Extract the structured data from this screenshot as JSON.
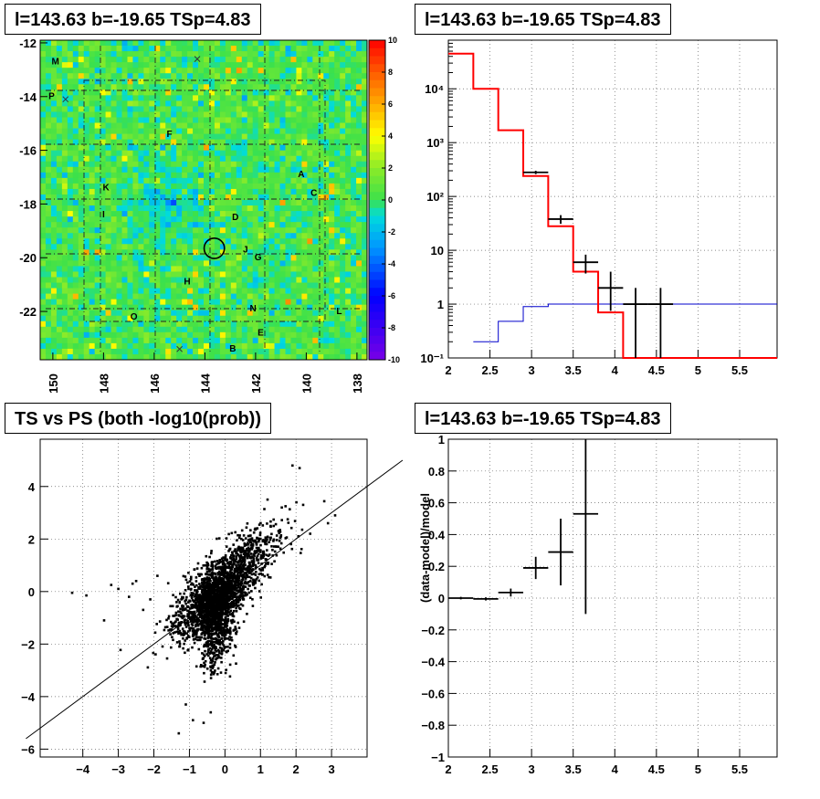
{
  "panels": {
    "map_title": "l=143.63 b=-19.65 TSp=4.83",
    "spectrum_title": "l=143.63 b=-19.65 TSp=4.83",
    "scatter_title": "TS vs PS (both -log10(prob))",
    "residual_title": "l=143.63 b=-19.65 TSp=4.83"
  },
  "colors": {
    "model": "#ff0000",
    "background": "#0000cc",
    "data": "#000000",
    "map_base": "#3fe04a"
  },
  "chart_data": [
    {
      "type": "heatmap",
      "title": "l=143.63 b=-19.65 TSp=4.83",
      "xlim": [
        150.5,
        137.6
      ],
      "ylim": [
        -23.8,
        -11.9
      ],
      "x_ticks": [
        "150",
        "148",
        "146",
        "144",
        "142",
        "140",
        "138"
      ],
      "x_tick_values": [
        150,
        148,
        146,
        144,
        142,
        140,
        138
      ],
      "y_ticks": [
        "-12",
        "-14",
        "-16",
        "-18",
        "-20",
        "-22"
      ],
      "y_tick_values": [
        -12,
        -14,
        -16,
        -18,
        -20,
        -22
      ],
      "colorbar_ticks": [
        "10",
        "8",
        "6",
        "4",
        "2",
        "0",
        "-2",
        "-4",
        "-6",
        "-8",
        "-10"
      ],
      "colorbar_values": [
        10,
        8,
        6,
        4,
        2,
        0,
        -2,
        -4,
        -6,
        -8,
        -10
      ],
      "zlim": [
        -10,
        10
      ],
      "source_circle": {
        "l": 143.63,
        "b": -19.65,
        "radius_deg": 0.4
      },
      "labels": [
        {
          "text": "M",
          "l": 149.9,
          "b": -12.8
        },
        {
          "text": "P",
          "l": 150.05,
          "b": -14.1
        },
        {
          "text": "F",
          "l": 145.4,
          "b": -15.5
        },
        {
          "text": "A",
          "l": 140.2,
          "b": -17.0
        },
        {
          "text": "K",
          "l": 147.9,
          "b": -17.5
        },
        {
          "text": "C",
          "l": 139.7,
          "b": -17.7
        },
        {
          "text": "I",
          "l": 148.0,
          "b": -18.5
        },
        {
          "text": "D",
          "l": 142.8,
          "b": -18.6
        },
        {
          "text": "J",
          "l": 142.4,
          "b": -19.8
        },
        {
          "text": "G",
          "l": 141.9,
          "b": -20.1
        },
        {
          "text": "H",
          "l": 144.7,
          "b": -21.0
        },
        {
          "text": "N",
          "l": 142.1,
          "b": -22.0
        },
        {
          "text": "O",
          "l": 146.8,
          "b": -22.3
        },
        {
          "text": "L",
          "l": 138.7,
          "b": -22.1
        },
        {
          "text": "E",
          "l": 141.8,
          "b": -22.9
        },
        {
          "text": "B",
          "l": 142.9,
          "b": -23.5
        }
      ],
      "crosses": [
        {
          "l": 149.5,
          "b": -14.1
        },
        {
          "l": 144.3,
          "b": -12.6
        },
        {
          "l": 145.0,
          "b": -23.4
        }
      ]
    },
    {
      "type": "line",
      "title": "l=143.63 b=-19.65 TSp=4.83",
      "log_y": true,
      "xlim": [
        2,
        5.95
      ],
      "ylim": [
        0.1,
        80000
      ],
      "x_ticks": [
        "2",
        "2.5",
        "3",
        "3.5",
        "4",
        "4.5",
        "5",
        "5.5"
      ],
      "x_tick_values": [
        2,
        2.5,
        3,
        3.5,
        4,
        4.5,
        5,
        5.5
      ],
      "y_ticks": [
        "10⁻¹",
        "1",
        "10",
        "10²",
        "10³",
        "10⁴"
      ],
      "y_tick_values": [
        0.1,
        1,
        10,
        100,
        1000,
        10000
      ],
      "grid": true,
      "series": [
        {
          "role": "model",
          "edges": [
            2.0,
            2.3,
            2.6,
            2.9,
            3.2,
            3.5,
            3.8,
            4.1,
            4.4,
            4.7,
            5.95
          ],
          "values": [
            45000,
            10000,
            1700,
            240,
            28,
            4,
            0.7,
            0.1,
            0.1,
            0.1
          ]
        },
        {
          "role": "background",
          "edges": [
            2.3,
            2.6,
            2.9,
            3.2,
            3.5,
            3.8,
            5.95
          ],
          "values": [
            0.2,
            0.48,
            0.9,
            1.0,
            1.0,
            1.0
          ]
        },
        {
          "role": "data",
          "points": [
            {
              "x": 3.05,
              "xerr": 0.15,
              "y": 280,
              "ylo": 260,
              "yhi": 300
            },
            {
              "x": 3.35,
              "xerr": 0.15,
              "y": 38,
              "ylo": 31,
              "yhi": 45
            },
            {
              "x": 3.65,
              "xerr": 0.15,
              "y": 6,
              "ylo": 3.7,
              "yhi": 8.3
            },
            {
              "x": 3.95,
              "xerr": 0.15,
              "y": 2,
              "ylo": 0.75,
              "yhi": 4
            },
            {
              "x": 4.25,
              "xerr": 0.15,
              "y": 1,
              "ylo": 0.1,
              "yhi": 2
            },
            {
              "x": 4.55,
              "xerr": 0.15,
              "y": 1,
              "ylo": 0.1,
              "yhi": 2
            }
          ]
        }
      ]
    },
    {
      "type": "scatter",
      "title": "TS vs PS (both -log10(prob))",
      "xlim": [
        -5.2,
        4
      ],
      "ylim": [
        -6.3,
        5.8
      ],
      "x_ticks": [
        "−4",
        "−3",
        "−2",
        "−1",
        "0",
        "1",
        "2",
        "3"
      ],
      "x_tick_values": [
        -4,
        -3,
        -2,
        -1,
        0,
        1,
        2,
        3
      ],
      "y_ticks": [
        "−6",
        "−4",
        "−2",
        "0",
        "2",
        "4"
      ],
      "y_tick_values": [
        -6,
        -4,
        -2,
        0,
        2,
        4
      ],
      "grid": true,
      "reference_line": {
        "slope": 1,
        "intercept": 0
      },
      "outliers": [
        [
          -4.3,
          -0.05
        ],
        [
          -3.9,
          -0.15
        ],
        [
          -3.2,
          0.25
        ],
        [
          -3.0,
          0.1
        ],
        [
          -2.6,
          0.3
        ],
        [
          -3.4,
          -1.1
        ],
        [
          -2.3,
          -0.7
        ],
        [
          -2.5,
          0.4
        ],
        [
          1.9,
          4.8
        ],
        [
          2.1,
          4.7
        ],
        [
          2.9,
          2.6
        ],
        [
          3.1,
          2.9
        ],
        [
          -1.3,
          -5.4
        ],
        [
          -0.9,
          -4.9
        ],
        [
          -0.6,
          -5.0
        ],
        [
          -1.1,
          -4.3
        ],
        [
          2.2,
          3.3
        ],
        [
          1.6,
          3.2
        ],
        [
          2.4,
          2.2
        ],
        [
          -2.1,
          -0.3
        ],
        [
          -1.9,
          0.6
        ],
        [
          -0.4,
          -4.6
        ],
        [
          1.2,
          3.5
        ],
        [
          -2.7,
          -0.2
        ]
      ]
    },
    {
      "type": "line",
      "title": "l=143.63 b=-19.65 TSp=4.83",
      "ylabel": "(data-model)/model",
      "xlim": [
        2,
        5.95
      ],
      "ylim": [
        -1,
        1
      ],
      "x_ticks": [
        "2",
        "2.5",
        "3",
        "3.5",
        "4",
        "4.5",
        "5",
        "5.5"
      ],
      "x_tick_values": [
        2,
        2.5,
        3,
        3.5,
        4,
        4.5,
        5,
        5.5
      ],
      "y_ticks": [
        "−1",
        "−0.8",
        "−0.6",
        "−0.4",
        "−0.2",
        "0",
        "0.2",
        "0.4",
        "0.6",
        "0.8",
        "1"
      ],
      "y_tick_values": [
        -1,
        -0.8,
        -0.6,
        -0.4,
        -0.2,
        0,
        0.2,
        0.4,
        0.6,
        0.8,
        1
      ],
      "grid": true,
      "points": [
        {
          "x": 2.15,
          "xerr": 0.15,
          "y": 0.0,
          "ylo": -0.008,
          "yhi": 0.008
        },
        {
          "x": 2.45,
          "xerr": 0.15,
          "y": -0.005,
          "ylo": -0.015,
          "yhi": 0.005
        },
        {
          "x": 2.75,
          "xerr": 0.15,
          "y": 0.035,
          "ylo": 0.01,
          "yhi": 0.06
        },
        {
          "x": 3.05,
          "xerr": 0.15,
          "y": 0.19,
          "ylo": 0.12,
          "yhi": 0.26
        },
        {
          "x": 3.35,
          "xerr": 0.15,
          "y": 0.29,
          "ylo": 0.08,
          "yhi": 0.5
        },
        {
          "x": 3.65,
          "xerr": 0.15,
          "y": 0.53,
          "ylo": -0.1,
          "yhi": 1.0
        }
      ]
    }
  ]
}
